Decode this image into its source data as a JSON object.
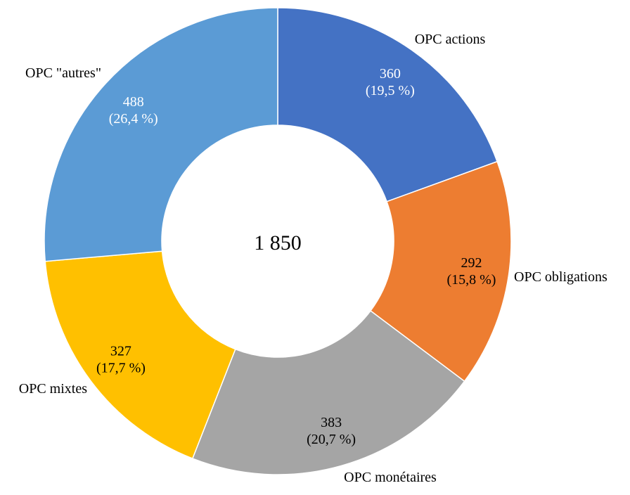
{
  "chart_data": {
    "type": "pie",
    "variant": "donut",
    "total_label": "1 850",
    "slices": [
      {
        "category": "OPC actions",
        "value": 360,
        "value_label": "360",
        "percent_label": "(19,5 %)",
        "color": "#4472C4",
        "value_text_color": "#FFFFFF"
      },
      {
        "category": "OPC obligations",
        "value": 292,
        "value_label": "292",
        "percent_label": "(15,8 %)",
        "color": "#ED7D31",
        "value_text_color": "#000000"
      },
      {
        "category": "OPC monétaires",
        "value": 383,
        "value_label": "383",
        "percent_label": "(20,7 %)",
        "color": "#A5A5A5",
        "value_text_color": "#000000"
      },
      {
        "category": "OPC mixtes",
        "value": 327,
        "value_label": "327",
        "percent_label": "(17,7 %)",
        "color": "#FFC000",
        "value_text_color": "#000000"
      },
      {
        "category": "OPC \"autres\"",
        "value": 488,
        "value_label": "488",
        "percent_label": "(26,4 %)",
        "color": "#5B9BD5",
        "value_text_color": "#FFFFFF"
      }
    ]
  }
}
